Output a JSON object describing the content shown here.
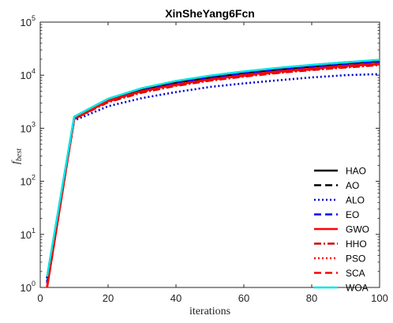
{
  "chart_data": {
    "type": "line",
    "title": "XinSheYang6Fcn",
    "xlabel": "iterations",
    "ylabel": "f_best",
    "ylabel_main": "f",
    "ylabel_sub": "best",
    "xlim": [
      0,
      100
    ],
    "ylim": [
      1,
      100000
    ],
    "yscale": "log",
    "grid": false,
    "legend_position": "bottom-right",
    "x_ticks": [
      "0",
      "20",
      "40",
      "60",
      "80",
      "100"
    ],
    "y_ticks": [
      {
        "base": "10",
        "exp": "0"
      },
      {
        "base": "10",
        "exp": "1"
      },
      {
        "base": "10",
        "exp": "2"
      },
      {
        "base": "10",
        "exp": "3"
      },
      {
        "base": "10",
        "exp": "4"
      },
      {
        "base": "10",
        "exp": "5"
      }
    ],
    "x": [
      2,
      10,
      20,
      30,
      40,
      50,
      60,
      70,
      80,
      90,
      100
    ],
    "series": [
      {
        "name": "HAO",
        "color": "#000000",
        "dash": "solid",
        "width": 2.6,
        "values": [
          1.5,
          1600,
          3500,
          5500,
          7500,
          9500,
          11500,
          13500,
          15500,
          17500,
          19000
        ]
      },
      {
        "name": "AO",
        "color": "#000000",
        "dash": "dashed",
        "width": 2.6,
        "values": [
          1.5,
          1550,
          3400,
          5300,
          7200,
          9000,
          11000,
          12800,
          14600,
          16500,
          18300
        ]
      },
      {
        "name": "ALO",
        "color": "#0000cc",
        "dash": "dotted",
        "width": 2.6,
        "values": [
          1.3,
          1400,
          2600,
          3700,
          4800,
          6000,
          7000,
          8000,
          9100,
          10000,
          10500
        ]
      },
      {
        "name": "EO",
        "color": "#0000ff",
        "dash": "dashed",
        "width": 2.6,
        "values": [
          1.2,
          1500,
          3300,
          5100,
          7000,
          8800,
          10700,
          12500,
          14300,
          16000,
          17800
        ]
      },
      {
        "name": "GWO",
        "color": "#ff0000",
        "dash": "solid",
        "width": 2.6,
        "values": [
          1.0,
          1550,
          3300,
          5000,
          6700,
          8300,
          10000,
          11700,
          13300,
          15000,
          16500
        ]
      },
      {
        "name": "HHO",
        "color": "#cc0000",
        "dash": "dashdot",
        "width": 2.6,
        "values": [
          1.0,
          1500,
          3100,
          4700,
          6300,
          7900,
          9400,
          11000,
          12500,
          14000,
          15500
        ]
      },
      {
        "name": "PSO",
        "color": "#ff0000",
        "dash": "dotted",
        "width": 2.6,
        "values": [
          0.9,
          1500,
          3200,
          4900,
          6500,
          8100,
          9700,
          11300,
          12800,
          14300,
          16000
        ]
      },
      {
        "name": "SCA",
        "color": "#ff0000",
        "dash": "dashed",
        "width": 2.6,
        "values": [
          0.95,
          1500,
          3250,
          5000,
          6600,
          8200,
          9800,
          11400,
          13000,
          14600,
          16200
        ]
      },
      {
        "name": "WOA",
        "color": "#00e5e5",
        "dash": "solid",
        "width": 2.6,
        "values": [
          1.6,
          1650,
          3600,
          5700,
          7800,
          9800,
          11800,
          13700,
          15600,
          17500,
          19500
        ]
      }
    ]
  }
}
